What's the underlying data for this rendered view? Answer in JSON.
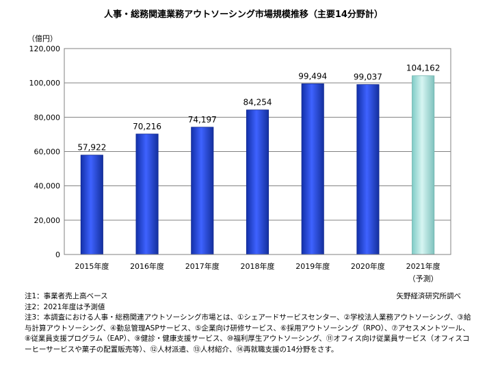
{
  "chart_data": {
    "type": "bar",
    "title": "人事・総務関連業務アウトソーシング市場規模推移（主要14分野計）",
    "ylabel": "（億円）",
    "xlabel": "",
    "categories": [
      "2015年度",
      "2016年度",
      "2017年度",
      "2018年度",
      "2019年度",
      "2020年度",
      "2021年度"
    ],
    "category_notes": [
      "",
      "",
      "",
      "",
      "",
      "",
      "（予測）"
    ],
    "values": [
      57922,
      70216,
      74197,
      84254,
      99494,
      99037,
      104162
    ],
    "value_labels": [
      "57,922",
      "70,216",
      "74,197",
      "84,254",
      "99,494",
      "99,037",
      "104,162"
    ],
    "forecast": [
      false,
      false,
      false,
      false,
      false,
      false,
      true
    ],
    "ylim": [
      0,
      120000
    ],
    "yticks": [
      0,
      20000,
      40000,
      60000,
      80000,
      100000,
      120000
    ],
    "ytick_labels": [
      "0",
      "20,000",
      "40,000",
      "60,000",
      "80,000",
      "100,000",
      "120,000"
    ],
    "grid": true,
    "colors": {
      "actual": "#1f3fc8",
      "forecast": "#a8e0dc"
    }
  },
  "notes": [
    "注1：事業者売上高ベース",
    "注2：2021年度は予測値",
    "注3：本調査における人事・総務関連アウトソーシング市場とは、①シェアードサービスセンター、②学校法人業務アウトソーシング、③給与計算アウトソーシング、④勤怠管理ASPサービス、⑤企業向け研修サービス、⑥採用アウトソーシング（RPO）、⑦アセスメントツール、⑧従業員支援プログラム（EAP）、⑨健診・健康支援サービス、⑩福利厚生アウトソーシング、⑪オフィス向け従業員サービス（オフィスコーヒーサービスや菓子の配置販売等）、⑫人材派遣、⑬人材紹介、⑭再就職支援の14分野をさす。"
  ],
  "source": "矢野経済研究所調べ"
}
